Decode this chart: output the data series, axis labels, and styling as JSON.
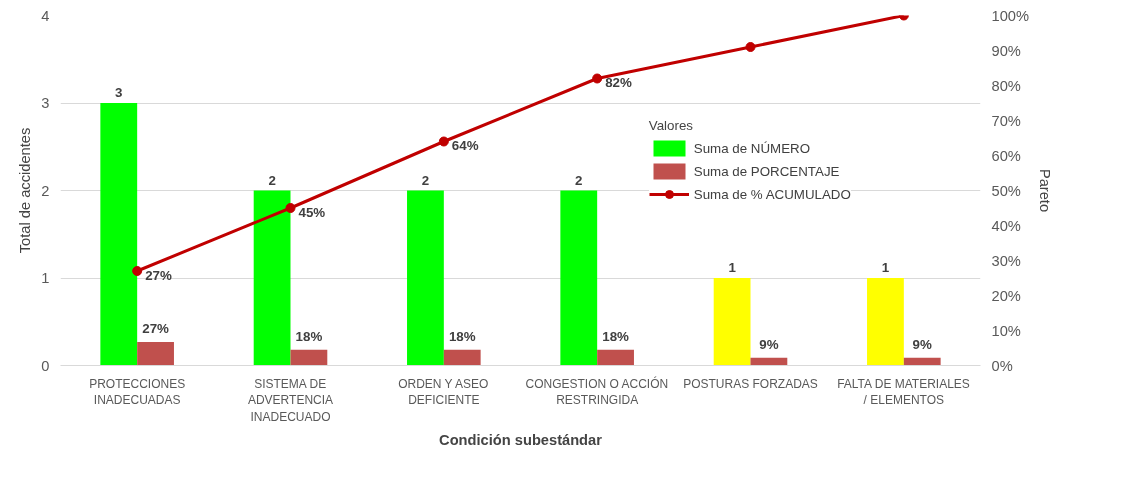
{
  "chart_data": {
    "type": "bar",
    "xlabel": "Condición subestándar",
    "ylabel": "Total de accidentes",
    "y2label": "Pareto",
    "legend_title": "Valores",
    "categories": [
      "PROTECCIONES INADECUADAS",
      "SISTEMA DE ADVERTENCIA INADECUADO",
      "ORDEN Y ASEO DEFICIENTE",
      "CONGESTION O ACCIÓN RESTRINGIDA",
      "POSTURAS FORZADAS",
      "FALTA DE MATERIALES / ELEMENTOS"
    ],
    "series": [
      {
        "name": "Suma de NÚMERO",
        "color": "#00ff00",
        "colors": [
          "#00ff00",
          "#00ff00",
          "#00ff00",
          "#00ff00",
          "#ffff00",
          "#ffff00"
        ],
        "values": [
          3,
          2,
          2,
          2,
          1,
          1
        ],
        "value_labels": [
          "3",
          "2",
          "2",
          "2",
          "1",
          "1"
        ]
      },
      {
        "name": "Suma de PORCENTAJE",
        "color": "#c0504d",
        "values": [
          0.27,
          0.18,
          0.18,
          0.18,
          0.09,
          0.09
        ],
        "value_labels": [
          "27%",
          "18%",
          "18%",
          "18%",
          "9%",
          "9%"
        ]
      },
      {
        "name": "Suma de % ACUMULADO",
        "type": "line",
        "axis": "y2",
        "color": "#c00000",
        "marker": "circle",
        "values": [
          27,
          45,
          64,
          82,
          91,
          100
        ],
        "value_labels": [
          "27%",
          "45%",
          "64%",
          "82%",
          null,
          null
        ]
      }
    ],
    "ylim": [
      0,
      4
    ],
    "yticks": [
      0,
      1,
      2,
      3,
      4
    ],
    "y2lim": [
      0,
      100
    ],
    "y2ticks": [
      {
        "value": 0,
        "label": "0%"
      },
      {
        "value": 10,
        "label": "10%"
      },
      {
        "value": 20,
        "label": "20%"
      },
      {
        "value": 30,
        "label": "30%"
      },
      {
        "value": 40,
        "label": "40%"
      },
      {
        "value": 50,
        "label": "50%"
      },
      {
        "value": 60,
        "label": "60%"
      },
      {
        "value": 70,
        "label": "70%"
      },
      {
        "value": 80,
        "label": "80%"
      },
      {
        "value": 90,
        "label": "90%"
      },
      {
        "value": 100,
        "label": "100%"
      }
    ],
    "grid": "y",
    "legend": "top right"
  }
}
